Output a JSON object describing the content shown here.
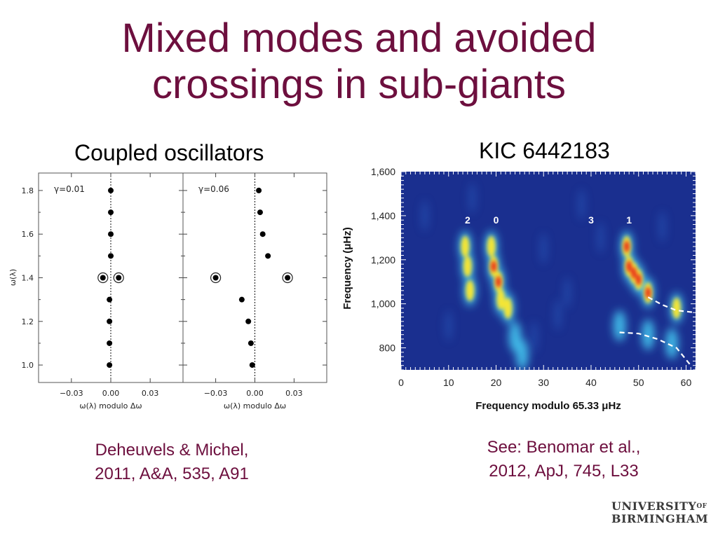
{
  "slide": {
    "title_line1": "Mixed modes and avoided",
    "title_line2": "crossings in sub-giants",
    "left_heading": "Coupled oscillators",
    "right_heading": "KIC 6442183",
    "left_citation_line1": "Deheuvels & Michel,",
    "left_citation_line2": "2011, A&A, 535, A91",
    "right_citation_line1": "See: Benomar et al.,",
    "right_citation_line2": "2012, ApJ, 745, L33",
    "logo_line1": "UNIVERSITY",
    "logo_of": "OF",
    "logo_line2": "BIRMINGHAM"
  },
  "colors": {
    "title": "#6d0f3e",
    "heatmap_background": "#1a2f8f",
    "dashed_curve": "#ffffff"
  },
  "chart_data": [
    {
      "type": "scatter",
      "panel_label": "γ=0.01",
      "xlabel": "ω(λ)  modulo  Δω",
      "ylabel": "ω(λ)",
      "xlim": [
        -0.055,
        0.055
      ],
      "ylim": [
        0.92,
        1.88
      ],
      "xticks": [
        "−0.03",
        "0.00",
        "0.03"
      ],
      "xtick_values": [
        -0.03,
        0.0,
        0.03
      ],
      "yticks": [
        "1.0",
        "1.2",
        "1.4",
        "1.6",
        "1.8"
      ],
      "ytick_values": [
        1.0,
        1.2,
        1.4,
        1.6,
        1.8
      ],
      "points": [
        {
          "x": 0.0,
          "y": 1.8
        },
        {
          "x": 0.0,
          "y": 1.7
        },
        {
          "x": 0.0,
          "y": 1.6
        },
        {
          "x": 0.0,
          "y": 1.5
        },
        {
          "x": -0.006,
          "y": 1.4,
          "ringed": true
        },
        {
          "x": 0.006,
          "y": 1.4,
          "ringed": true
        },
        {
          "x": -0.001,
          "y": 1.3
        },
        {
          "x": -0.001,
          "y": 1.2
        },
        {
          "x": -0.001,
          "y": 1.1
        },
        {
          "x": -0.001,
          "y": 1.0
        }
      ],
      "dotted_line_x": 0.0
    },
    {
      "type": "scatter",
      "panel_label": "γ=0.06",
      "xlabel": "ω(λ)  modulo  Δω",
      "xlim": [
        -0.055,
        0.055
      ],
      "ylim": [
        0.92,
        1.88
      ],
      "xticks": [
        "−0.03",
        "0.00",
        "0.03"
      ],
      "xtick_values": [
        -0.03,
        0.0,
        0.03
      ],
      "points": [
        {
          "x": 0.003,
          "y": 1.8
        },
        {
          "x": 0.004,
          "y": 1.7
        },
        {
          "x": 0.006,
          "y": 1.6
        },
        {
          "x": 0.01,
          "y": 1.5
        },
        {
          "x": -0.03,
          "y": 1.4,
          "ringed": true
        },
        {
          "x": 0.025,
          "y": 1.4,
          "ringed": true
        },
        {
          "x": -0.01,
          "y": 1.3
        },
        {
          "x": -0.005,
          "y": 1.2
        },
        {
          "x": -0.003,
          "y": 1.1
        },
        {
          "x": -0.002,
          "y": 1.0
        }
      ],
      "dotted_line_x": 0.0
    },
    {
      "type": "heatmap",
      "xlabel": "Frequency modulo 65.33 μHz",
      "ylabel": "Frequency (μHz)",
      "xlim": [
        0,
        62
      ],
      "ylim": [
        700,
        1600
      ],
      "xticks": [
        "0",
        "10",
        "20",
        "30",
        "40",
        "50",
        "60"
      ],
      "xtick_values": [
        0,
        10,
        20,
        30,
        40,
        50,
        60
      ],
      "yticks": [
        "800",
        "1,000",
        "1,200",
        "1,400",
        "1,600"
      ],
      "ytick_values": [
        800,
        1000,
        1200,
        1400,
        1600
      ],
      "mode_labels": [
        {
          "text": "2",
          "x": 14,
          "y": 1380
        },
        {
          "text": "0",
          "x": 20,
          "y": 1380
        },
        {
          "text": "3",
          "x": 40,
          "y": 1380
        },
        {
          "text": "1",
          "x": 48,
          "y": 1380
        }
      ],
      "ridges": [
        {
          "name": "l=2",
          "points": [
            [
              13.5,
              1260
            ],
            [
              14,
              1170
            ],
            [
              14.5,
              1060
            ]
          ]
        },
        {
          "name": "l=0",
          "points": [
            [
              19,
              1260
            ],
            [
              19.5,
              1170
            ],
            [
              20.5,
              1100
            ],
            [
              21,
              1020
            ],
            [
              22.5,
              980
            ],
            [
              24,
              850
            ],
            [
              25.5,
              770
            ]
          ]
        },
        {
          "name": "l=1",
          "points": [
            [
              47.5,
              1260
            ],
            [
              48,
              1170
            ],
            [
              49,
              1140
            ],
            [
              50,
              1110
            ],
            [
              52,
              1050
            ],
            [
              58,
              980
            ],
            [
              46,
              900
            ],
            [
              52,
              860
            ],
            [
              57,
              820
            ]
          ]
        }
      ],
      "dashed_curves": [
        {
          "points": [
            [
              52,
              1030
            ],
            [
              55,
              995
            ],
            [
              58,
              970
            ],
            [
              62,
              960
            ]
          ]
        },
        {
          "points": [
            [
              46,
              870
            ],
            [
              50,
              865
            ],
            [
              54,
              840
            ],
            [
              58,
              800
            ],
            [
              61,
              720
            ]
          ]
        }
      ]
    }
  ]
}
